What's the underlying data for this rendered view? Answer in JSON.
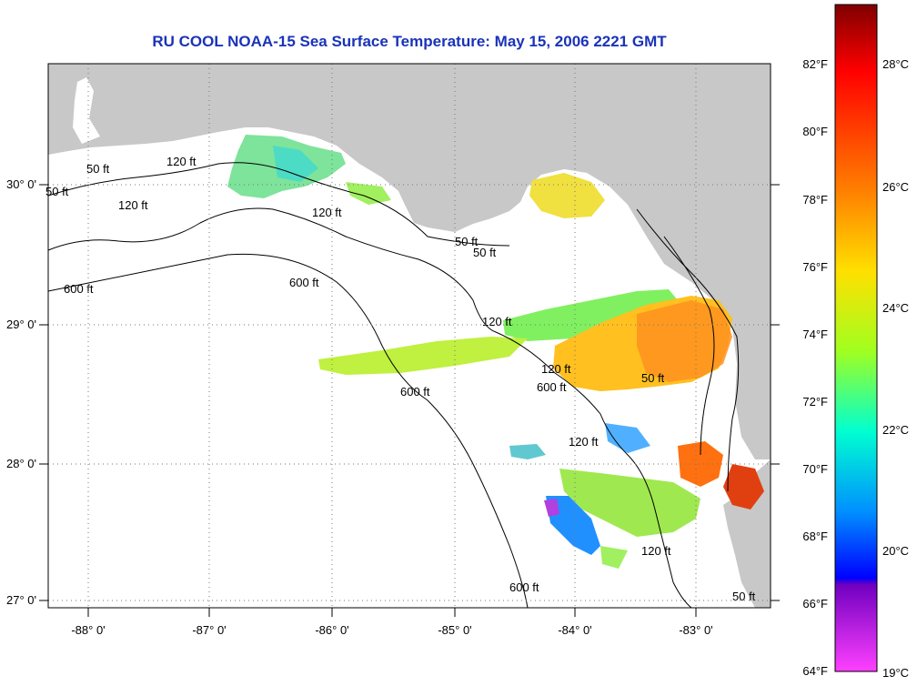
{
  "title": "RU COOL  NOAA-15  Sea Surface Temperature:  May 15, 2006 2221 GMT",
  "map": {
    "lon_labels": [
      "-88° 0'",
      "-87° 0'",
      "-86° 0'",
      "-85° 0'",
      "-84° 0'",
      "-83° 0'"
    ],
    "lat_labels": [
      "30° 0'",
      "29° 0'",
      "28° 0'",
      "27° 0'"
    ],
    "contour_labels": [
      "50 ft",
      "120 ft",
      "600 ft",
      "50 ft",
      "120 ft",
      "600 ft",
      "120 ft",
      "50 ft",
      "120 ft",
      "600 ft",
      "120 ft",
      "600 ft",
      "50 ft",
      "50 ft",
      "120 ft",
      "600 ft",
      "50 ft",
      "120 ft"
    ],
    "land_color": "#c8c8c8",
    "water_color": "#ffffff"
  },
  "colorbar": {
    "f_labels": [
      "82°F",
      "80°F",
      "78°F",
      "76°F",
      "74°F",
      "72°F",
      "70°F",
      "68°F",
      "66°F",
      "64°F"
    ],
    "c_labels": [
      "28°C",
      "26°C",
      "24°C",
      "22°C",
      "20°C",
      "19°C"
    ],
    "colors": [
      "#8b0000",
      "#ff0000",
      "#ff8000",
      "#ffff00",
      "#80ff40",
      "#00ffff",
      "#0080ff",
      "#0000ff",
      "#8000c0",
      "#ff40ff"
    ]
  }
}
